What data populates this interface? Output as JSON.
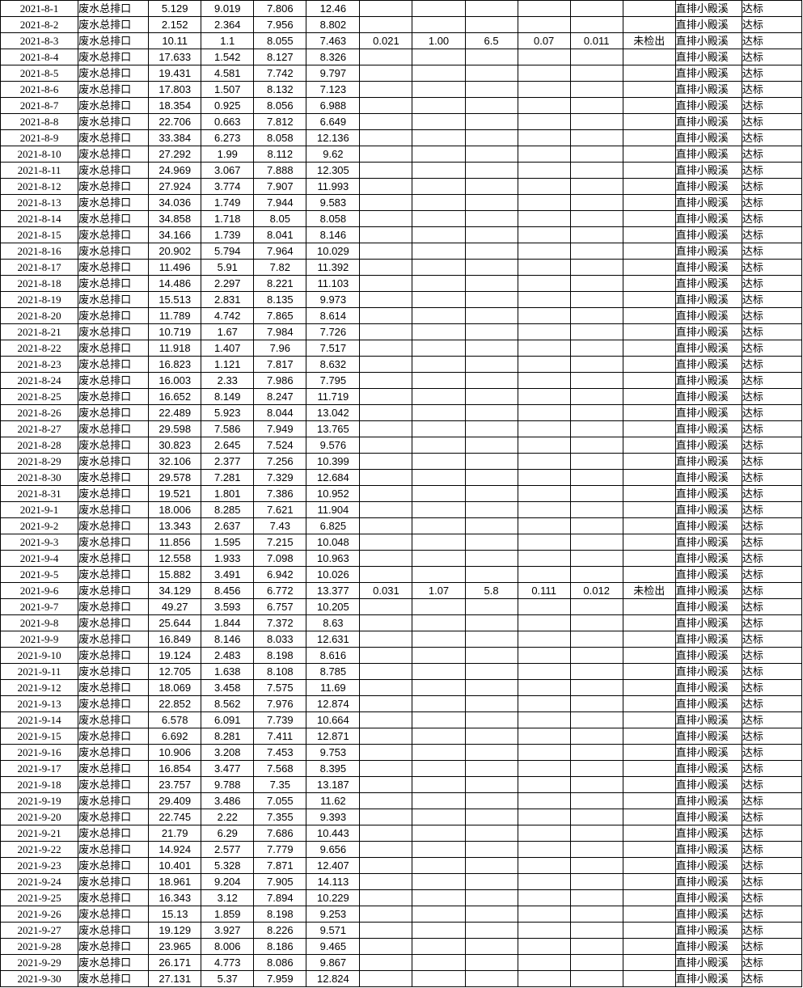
{
  "colors": {
    "grid": "#000000",
    "text": "#000000",
    "background": "#ffffff"
  },
  "table": {
    "column_names": [
      "date",
      "outlet-name",
      "value-1",
      "value-2",
      "value-3",
      "value-4",
      "extra-1",
      "extra-2",
      "extra-3",
      "extra-4",
      "extra-5",
      "detection-result",
      "discharge-destination",
      "compliance-status"
    ],
    "outlet_label": "废水总排口",
    "discharge_destination_label": "直排小殿溪",
    "compliance_label": "达标",
    "not_detected_label": "未检出",
    "rows": [
      [
        "2021-8-1",
        "废水总排口",
        "5.129",
        "9.019",
        "7.806",
        "12.46",
        "",
        "",
        "",
        "",
        "",
        "",
        "直排小殿溪",
        "达标"
      ],
      [
        "2021-8-2",
        "废水总排口",
        "2.152",
        "2.364",
        "7.956",
        "8.802",
        "",
        "",
        "",
        "",
        "",
        "",
        "直排小殿溪",
        "达标"
      ],
      [
        "2021-8-3",
        "废水总排口",
        "10.11",
        "1.1",
        "8.055",
        "7.463",
        "0.021",
        "1.00",
        "6.5",
        "0.07",
        "0.011",
        "未检出",
        "直排小殿溪",
        "达标"
      ],
      [
        "2021-8-4",
        "废水总排口",
        "17.633",
        "1.542",
        "8.127",
        "8.326",
        "",
        "",
        "",
        "",
        "",
        "",
        "直排小殿溪",
        "达标"
      ],
      [
        "2021-8-5",
        "废水总排口",
        "19.431",
        "4.581",
        "7.742",
        "9.797",
        "",
        "",
        "",
        "",
        "",
        "",
        "直排小殿溪",
        "达标"
      ],
      [
        "2021-8-6",
        "废水总排口",
        "17.803",
        "1.507",
        "8.132",
        "7.123",
        "",
        "",
        "",
        "",
        "",
        "",
        "直排小殿溪",
        "达标"
      ],
      [
        "2021-8-7",
        "废水总排口",
        "18.354",
        "0.925",
        "8.056",
        "6.988",
        "",
        "",
        "",
        "",
        "",
        "",
        "直排小殿溪",
        "达标"
      ],
      [
        "2021-8-8",
        "废水总排口",
        "22.706",
        "0.663",
        "7.812",
        "6.649",
        "",
        "",
        "",
        "",
        "",
        "",
        "直排小殿溪",
        "达标"
      ],
      [
        "2021-8-9",
        "废水总排口",
        "33.384",
        "6.273",
        "8.058",
        "12.136",
        "",
        "",
        "",
        "",
        "",
        "",
        "直排小殿溪",
        "达标"
      ],
      [
        "2021-8-10",
        "废水总排口",
        "27.292",
        "1.99",
        "8.112",
        "9.62",
        "",
        "",
        "",
        "",
        "",
        "",
        "直排小殿溪",
        "达标"
      ],
      [
        "2021-8-11",
        "废水总排口",
        "24.969",
        "3.067",
        "7.888",
        "12.305",
        "",
        "",
        "",
        "",
        "",
        "",
        "直排小殿溪",
        "达标"
      ],
      [
        "2021-8-12",
        "废水总排口",
        "27.924",
        "3.774",
        "7.907",
        "11.993",
        "",
        "",
        "",
        "",
        "",
        "",
        "直排小殿溪",
        "达标"
      ],
      [
        "2021-8-13",
        "废水总排口",
        "34.036",
        "1.749",
        "7.944",
        "9.583",
        "",
        "",
        "",
        "",
        "",
        "",
        "直排小殿溪",
        "达标"
      ],
      [
        "2021-8-14",
        "废水总排口",
        "34.858",
        "1.718",
        "8.05",
        "8.058",
        "",
        "",
        "",
        "",
        "",
        "",
        "直排小殿溪",
        "达标"
      ],
      [
        "2021-8-15",
        "废水总排口",
        "34.166",
        "1.739",
        "8.041",
        "8.146",
        "",
        "",
        "",
        "",
        "",
        "",
        "直排小殿溪",
        "达标"
      ],
      [
        "2021-8-16",
        "废水总排口",
        "20.902",
        "5.794",
        "7.964",
        "10.029",
        "",
        "",
        "",
        "",
        "",
        "",
        "直排小殿溪",
        "达标"
      ],
      [
        "2021-8-17",
        "废水总排口",
        "11.496",
        "5.91",
        "7.82",
        "11.392",
        "",
        "",
        "",
        "",
        "",
        "",
        "直排小殿溪",
        "达标"
      ],
      [
        "2021-8-18",
        "废水总排口",
        "14.486",
        "2.297",
        "8.221",
        "11.103",
        "",
        "",
        "",
        "",
        "",
        "",
        "直排小殿溪",
        "达标"
      ],
      [
        "2021-8-19",
        "废水总排口",
        "15.513",
        "2.831",
        "8.135",
        "9.973",
        "",
        "",
        "",
        "",
        "",
        "",
        "直排小殿溪",
        "达标"
      ],
      [
        "2021-8-20",
        "废水总排口",
        "11.789",
        "4.742",
        "7.865",
        "8.614",
        "",
        "",
        "",
        "",
        "",
        "",
        "直排小殿溪",
        "达标"
      ],
      [
        "2021-8-21",
        "废水总排口",
        "10.719",
        "1.67",
        "7.984",
        "7.726",
        "",
        "",
        "",
        "",
        "",
        "",
        "直排小殿溪",
        "达标"
      ],
      [
        "2021-8-22",
        "废水总排口",
        "11.918",
        "1.407",
        "7.96",
        "7.517",
        "",
        "",
        "",
        "",
        "",
        "",
        "直排小殿溪",
        "达标"
      ],
      [
        "2021-8-23",
        "废水总排口",
        "16.823",
        "1.121",
        "7.817",
        "8.632",
        "",
        "",
        "",
        "",
        "",
        "",
        "直排小殿溪",
        "达标"
      ],
      [
        "2021-8-24",
        "废水总排口",
        "16.003",
        "2.33",
        "7.986",
        "7.795",
        "",
        "",
        "",
        "",
        "",
        "",
        "直排小殿溪",
        "达标"
      ],
      [
        "2021-8-25",
        "废水总排口",
        "16.652",
        "8.149",
        "8.247",
        "11.719",
        "",
        "",
        "",
        "",
        "",
        "",
        "直排小殿溪",
        "达标"
      ],
      [
        "2021-8-26",
        "废水总排口",
        "22.489",
        "5.923",
        "8.044",
        "13.042",
        "",
        "",
        "",
        "",
        "",
        "",
        "直排小殿溪",
        "达标"
      ],
      [
        "2021-8-27",
        "废水总排口",
        "29.598",
        "7.586",
        "7.949",
        "13.765",
        "",
        "",
        "",
        "",
        "",
        "",
        "直排小殿溪",
        "达标"
      ],
      [
        "2021-8-28",
        "废水总排口",
        "30.823",
        "2.645",
        "7.524",
        "9.576",
        "",
        "",
        "",
        "",
        "",
        "",
        "直排小殿溪",
        "达标"
      ],
      [
        "2021-8-29",
        "废水总排口",
        "32.106",
        "2.377",
        "7.256",
        "10.399",
        "",
        "",
        "",
        "",
        "",
        "",
        "直排小殿溪",
        "达标"
      ],
      [
        "2021-8-30",
        "废水总排口",
        "29.578",
        "7.281",
        "7.329",
        "12.684",
        "",
        "",
        "",
        "",
        "",
        "",
        "直排小殿溪",
        "达标"
      ],
      [
        "2021-8-31",
        "废水总排口",
        "19.521",
        "1.801",
        "7.386",
        "10.952",
        "",
        "",
        "",
        "",
        "",
        "",
        "直排小殿溪",
        "达标"
      ],
      [
        "2021-9-1",
        "废水总排口",
        "18.006",
        "8.285",
        "7.621",
        "11.904",
        "",
        "",
        "",
        "",
        "",
        "",
        "直排小殿溪",
        "达标"
      ],
      [
        "2021-9-2",
        "废水总排口",
        "13.343",
        "2.637",
        "7.43",
        "6.825",
        "",
        "",
        "",
        "",
        "",
        "",
        "直排小殿溪",
        "达标"
      ],
      [
        "2021-9-3",
        "废水总排口",
        "11.856",
        "1.595",
        "7.215",
        "10.048",
        "",
        "",
        "",
        "",
        "",
        "",
        "直排小殿溪",
        "达标"
      ],
      [
        "2021-9-4",
        "废水总排口",
        "12.558",
        "1.933",
        "7.098",
        "10.963",
        "",
        "",
        "",
        "",
        "",
        "",
        "直排小殿溪",
        "达标"
      ],
      [
        "2021-9-5",
        "废水总排口",
        "15.882",
        "3.491",
        "6.942",
        "10.026",
        "",
        "",
        "",
        "",
        "",
        "",
        "直排小殿溪",
        "达标"
      ],
      [
        "2021-9-6",
        "废水总排口",
        "34.129",
        "8.456",
        "6.772",
        "13.377",
        "0.031",
        "1.07",
        "5.8",
        "0.111",
        "0.012",
        "未检出",
        "直排小殿溪",
        "达标"
      ],
      [
        "2021-9-7",
        "废水总排口",
        "49.27",
        "3.593",
        "6.757",
        "10.205",
        "",
        "",
        "",
        "",
        "",
        "",
        "直排小殿溪",
        "达标"
      ],
      [
        "2021-9-8",
        "废水总排口",
        "25.644",
        "1.844",
        "7.372",
        "8.63",
        "",
        "",
        "",
        "",
        "",
        "",
        "直排小殿溪",
        "达标"
      ],
      [
        "2021-9-9",
        "废水总排口",
        "16.849",
        "8.146",
        "8.033",
        "12.631",
        "",
        "",
        "",
        "",
        "",
        "",
        "直排小殿溪",
        "达标"
      ],
      [
        "2021-9-10",
        "废水总排口",
        "19.124",
        "2.483",
        "8.198",
        "8.616",
        "",
        "",
        "",
        "",
        "",
        "",
        "直排小殿溪",
        "达标"
      ],
      [
        "2021-9-11",
        "废水总排口",
        "12.705",
        "1.638",
        "8.108",
        "8.785",
        "",
        "",
        "",
        "",
        "",
        "",
        "直排小殿溪",
        "达标"
      ],
      [
        "2021-9-12",
        "废水总排口",
        "18.069",
        "3.458",
        "7.575",
        "11.69",
        "",
        "",
        "",
        "",
        "",
        "",
        "直排小殿溪",
        "达标"
      ],
      [
        "2021-9-13",
        "废水总排口",
        "22.852",
        "8.562",
        "7.976",
        "12.874",
        "",
        "",
        "",
        "",
        "",
        "",
        "直排小殿溪",
        "达标"
      ],
      [
        "2021-9-14",
        "废水总排口",
        "6.578",
        "6.091",
        "7.739",
        "10.664",
        "",
        "",
        "",
        "",
        "",
        "",
        "直排小殿溪",
        "达标"
      ],
      [
        "2021-9-15",
        "废水总排口",
        "6.692",
        "8.281",
        "7.411",
        "12.871",
        "",
        "",
        "",
        "",
        "",
        "",
        "直排小殿溪",
        "达标"
      ],
      [
        "2021-9-16",
        "废水总排口",
        "10.906",
        "3.208",
        "7.453",
        "9.753",
        "",
        "",
        "",
        "",
        "",
        "",
        "直排小殿溪",
        "达标"
      ],
      [
        "2021-9-17",
        "废水总排口",
        "16.854",
        "3.477",
        "7.568",
        "8.395",
        "",
        "",
        "",
        "",
        "",
        "",
        "直排小殿溪",
        "达标"
      ],
      [
        "2021-9-18",
        "废水总排口",
        "23.757",
        "9.788",
        "7.35",
        "13.187",
        "",
        "",
        "",
        "",
        "",
        "",
        "直排小殿溪",
        "达标"
      ],
      [
        "2021-9-19",
        "废水总排口",
        "29.409",
        "3.486",
        "7.055",
        "11.62",
        "",
        "",
        "",
        "",
        "",
        "",
        "直排小殿溪",
        "达标"
      ],
      [
        "2021-9-20",
        "废水总排口",
        "22.745",
        "2.22",
        "7.355",
        "9.393",
        "",
        "",
        "",
        "",
        "",
        "",
        "直排小殿溪",
        "达标"
      ],
      [
        "2021-9-21",
        "废水总排口",
        "21.79",
        "6.29",
        "7.686",
        "10.443",
        "",
        "",
        "",
        "",
        "",
        "",
        "直排小殿溪",
        "达标"
      ],
      [
        "2021-9-22",
        "废水总排口",
        "14.924",
        "2.577",
        "7.779",
        "9.656",
        "",
        "",
        "",
        "",
        "",
        "",
        "直排小殿溪",
        "达标"
      ],
      [
        "2021-9-23",
        "废水总排口",
        "10.401",
        "5.328",
        "7.871",
        "12.407",
        "",
        "",
        "",
        "",
        "",
        "",
        "直排小殿溪",
        "达标"
      ],
      [
        "2021-9-24",
        "废水总排口",
        "18.961",
        "9.204",
        "7.905",
        "14.113",
        "",
        "",
        "",
        "",
        "",
        "",
        "直排小殿溪",
        "达标"
      ],
      [
        "2021-9-25",
        "废水总排口",
        "16.343",
        "3.12",
        "7.894",
        "10.229",
        "",
        "",
        "",
        "",
        "",
        "",
        "直排小殿溪",
        "达标"
      ],
      [
        "2021-9-26",
        "废水总排口",
        "15.13",
        "1.859",
        "8.198",
        "9.253",
        "",
        "",
        "",
        "",
        "",
        "",
        "直排小殿溪",
        "达标"
      ],
      [
        "2021-9-27",
        "废水总排口",
        "19.129",
        "3.927",
        "8.226",
        "9.571",
        "",
        "",
        "",
        "",
        "",
        "",
        "直排小殿溪",
        "达标"
      ],
      [
        "2021-9-28",
        "废水总排口",
        "23.965",
        "8.006",
        "8.186",
        "9.465",
        "",
        "",
        "",
        "",
        "",
        "",
        "直排小殿溪",
        "达标"
      ],
      [
        "2021-9-29",
        "废水总排口",
        "26.171",
        "4.773",
        "8.086",
        "9.867",
        "",
        "",
        "",
        "",
        "",
        "",
        "直排小殿溪",
        "达标"
      ],
      [
        "2021-9-30",
        "废水总排口",
        "27.131",
        "5.37",
        "7.959",
        "12.824",
        "",
        "",
        "",
        "",
        "",
        "",
        "直排小殿溪",
        "达标"
      ]
    ]
  }
}
